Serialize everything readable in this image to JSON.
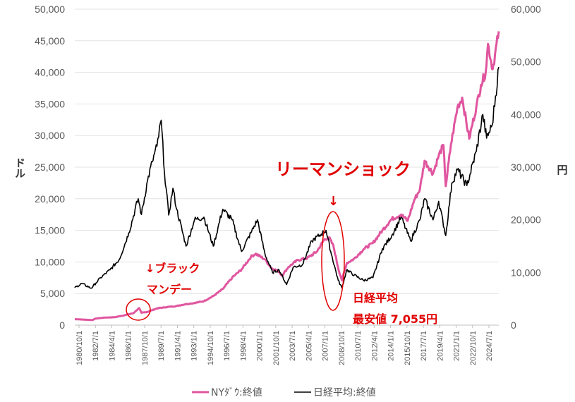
{
  "chart_data": {
    "type": "line",
    "left_axis": {
      "unit_label": "ドル",
      "ylim": [
        0,
        50000
      ],
      "ticks": [
        "0",
        "5,000",
        "10,000",
        "15,000",
        "20,000",
        "25,000",
        "30,000",
        "35,000",
        "40,000",
        "45,000",
        "50,000"
      ]
    },
    "right_axis": {
      "unit_label": "円",
      "ylim": [
        0,
        60000
      ],
      "ticks": [
        "0",
        "10,000",
        "20,000",
        "30,000",
        "40,000",
        "50,000",
        "60,000"
      ]
    },
    "x_ticks": [
      "1980/10/1",
      "1982/7/1",
      "1984/4/1",
      "1986/1/1",
      "1987/10/1",
      "1989/7/1",
      "1991/4/1",
      "1993/1/1",
      "1994/10/1",
      "1996/7/1",
      "1998/4/1",
      "2000/1/1",
      "2001/10/1",
      "2003/7/1",
      "2005/4/1",
      "2007/1/1",
      "2008/10/1",
      "2010/7/1",
      "2012/4/1",
      "2014/1/1",
      "2015/10/1",
      "2017/7/1",
      "2019/4/1",
      "2021/1/1",
      "2022/10/1",
      "2024/7/1"
    ],
    "x_range": [
      1980.75,
      2025.9
    ],
    "series": [
      {
        "name": "NYﾀﾞｳ:終値",
        "axis": "left",
        "color": "#e0569f",
        "points": [
          [
            1980.75,
            950
          ],
          [
            1982.0,
            850
          ],
          [
            1982.6,
            800
          ],
          [
            1983.0,
            1050
          ],
          [
            1984.0,
            1200
          ],
          [
            1985.0,
            1250
          ],
          [
            1986.0,
            1550
          ],
          [
            1987.0,
            1900
          ],
          [
            1987.6,
            2700
          ],
          [
            1987.85,
            1950
          ],
          [
            1988.5,
            2100
          ],
          [
            1989.5,
            2650
          ],
          [
            1990.5,
            2850
          ],
          [
            1991.5,
            3000
          ],
          [
            1992.5,
            3300
          ],
          [
            1993.5,
            3500
          ],
          [
            1994.5,
            3800
          ],
          [
            1995.5,
            4600
          ],
          [
            1996.5,
            5700
          ],
          [
            1997.5,
            7500
          ],
          [
            1998.5,
            8800
          ],
          [
            1999.5,
            10800
          ],
          [
            2000.0,
            11300
          ],
          [
            2001.0,
            10400
          ],
          [
            2001.7,
            9000
          ],
          [
            2002.5,
            8500
          ],
          [
            2002.8,
            7800
          ],
          [
            2003.5,
            9200
          ],
          [
            2004.5,
            10300
          ],
          [
            2005.5,
            10600
          ],
          [
            2006.5,
            11600
          ],
          [
            2007.3,
            13500
          ],
          [
            2007.8,
            13900
          ],
          [
            2008.3,
            12500
          ],
          [
            2008.8,
            9000
          ],
          [
            2009.2,
            7100
          ],
          [
            2009.7,
            9800
          ],
          [
            2010.5,
            10500
          ],
          [
            2011.5,
            12000
          ],
          [
            2012.5,
            13000
          ],
          [
            2013.5,
            15000
          ],
          [
            2014.5,
            16800
          ],
          [
            2015.5,
            17500
          ],
          [
            2016.2,
            16500
          ],
          [
            2016.9,
            19800
          ],
          [
            2017.5,
            21500
          ],
          [
            2018.0,
            26000
          ],
          [
            2018.9,
            24000
          ],
          [
            2019.5,
            26800
          ],
          [
            2020.0,
            28500
          ],
          [
            2020.25,
            22000
          ],
          [
            2020.8,
            28500
          ],
          [
            2021.5,
            34500
          ],
          [
            2022.0,
            36000
          ],
          [
            2022.75,
            29500
          ],
          [
            2023.5,
            34500
          ],
          [
            2024.0,
            38000
          ],
          [
            2024.5,
            40000
          ],
          [
            2024.75,
            44500
          ],
          [
            2025.25,
            40500
          ],
          [
            2025.9,
            46500
          ]
        ]
      },
      {
        "name": "日経平均:終値",
        "axis": "right",
        "color": "#000000",
        "points": [
          [
            1980.75,
            7100
          ],
          [
            1981.5,
            7900
          ],
          [
            1982.5,
            7000
          ],
          [
            1983.0,
            8000
          ],
          [
            1983.5,
            9000
          ],
          [
            1984.5,
            10500
          ],
          [
            1985.5,
            12500
          ],
          [
            1986.5,
            17500
          ],
          [
            1987.5,
            24000
          ],
          [
            1987.85,
            21000
          ],
          [
            1988.5,
            27500
          ],
          [
            1989.0,
            31000
          ],
          [
            1989.5,
            34000
          ],
          [
            1989.95,
            38900
          ],
          [
            1990.3,
            29000
          ],
          [
            1990.75,
            20900
          ],
          [
            1991.2,
            26000
          ],
          [
            1991.6,
            22000
          ],
          [
            1992.6,
            15000
          ],
          [
            1993.5,
            20000
          ],
          [
            1994.5,
            20500
          ],
          [
            1995.5,
            15000
          ],
          [
            1996.5,
            22000
          ],
          [
            1997.5,
            20000
          ],
          [
            1998.5,
            14000
          ],
          [
            1999.5,
            17500
          ],
          [
            2000.2,
            20000
          ],
          [
            2001.0,
            13500
          ],
          [
            2001.8,
            10000
          ],
          [
            2002.5,
            10500
          ],
          [
            2003.3,
            7700
          ],
          [
            2004.0,
            11000
          ],
          [
            2005.0,
            11500
          ],
          [
            2006.0,
            16000
          ],
          [
            2007.0,
            17300
          ],
          [
            2007.5,
            18000
          ],
          [
            2008.0,
            14000
          ],
          [
            2008.8,
            8500
          ],
          [
            2009.2,
            7055
          ],
          [
            2009.7,
            10500
          ],
          [
            2010.5,
            9500
          ],
          [
            2011.5,
            8500
          ],
          [
            2012.5,
            9000
          ],
          [
            2013.5,
            14500
          ],
          [
            2014.5,
            17000
          ],
          [
            2015.5,
            20500
          ],
          [
            2016.5,
            16000
          ],
          [
            2017.5,
            20000
          ],
          [
            2018.0,
            24000
          ],
          [
            2018.9,
            20000
          ],
          [
            2019.5,
            23500
          ],
          [
            2020.25,
            17000
          ],
          [
            2020.9,
            27000
          ],
          [
            2021.5,
            29500
          ],
          [
            2022.5,
            26500
          ],
          [
            2023.5,
            33000
          ],
          [
            2024.2,
            40000
          ],
          [
            2024.6,
            35500
          ],
          [
            2025.2,
            38000
          ],
          [
            2025.9,
            49000
          ]
        ]
      }
    ],
    "annotations": [
      {
        "text": "リーマンショック",
        "role": "event-title"
      },
      {
        "text": "↓",
        "role": "event-arrow"
      },
      {
        "text": "↓ブラック",
        "role": "black-monday-1"
      },
      {
        "text": "マンデー",
        "role": "black-monday-2"
      },
      {
        "text": "日経平均",
        "role": "low-label-1"
      },
      {
        "text": "最安値 7,055円",
        "role": "low-label-2"
      }
    ],
    "grid": "horizontal",
    "legend_position": "bottom"
  }
}
